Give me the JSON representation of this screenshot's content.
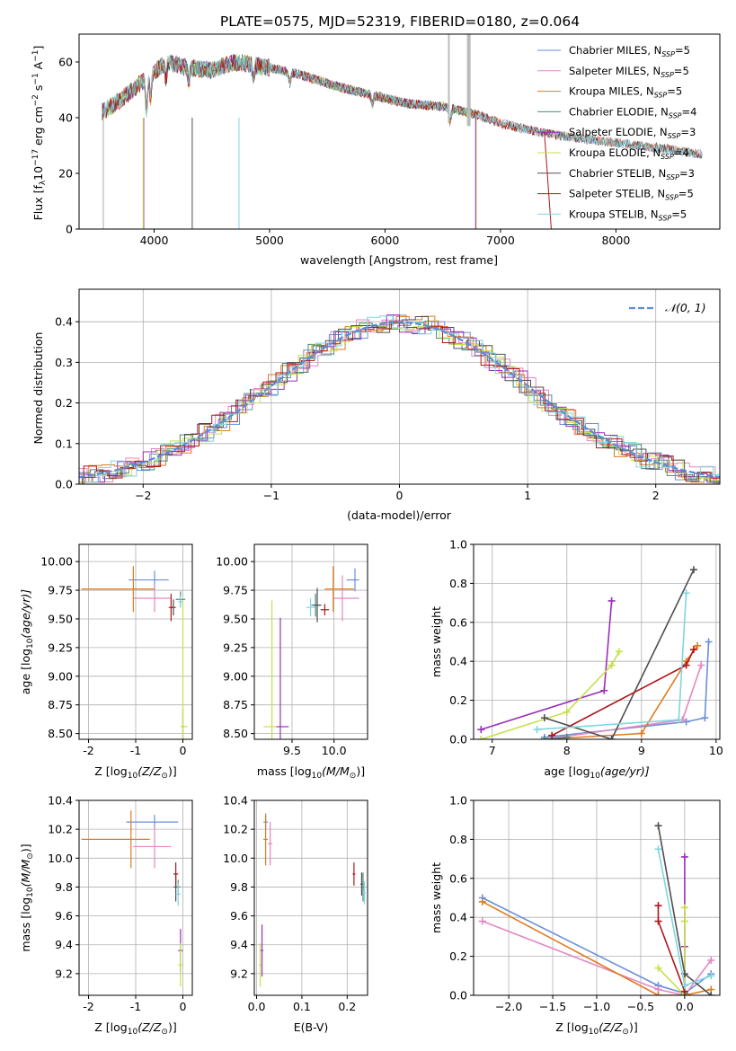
{
  "colors": {
    "Chabrier MILES": "#6a8fd8",
    "Salpeter MILES": "#e388c2",
    "Kroupa MILES": "#e07b1f",
    "Chabrier ELODIE": "#4a8a7a",
    "Salpeter ELODIE": "#9a2fb8",
    "Kroupa ELODIE": "#c5e04a",
    "Chabrier STELIB": "#505050",
    "Salpeter STELIB": "#b0161c",
    "Kroupa STELIB": "#7fd6df",
    "model_line": "#5b8bd6",
    "grid": "#b0b0b0"
  },
  "chart_data": [
    {
      "id": "spectrum",
      "type": "line",
      "title": "PLATE=0575, MJD=52319, FIBERID=0180, z=0.064",
      "xlabel": "wavelength [Angstrom, rest frame]",
      "ylabel": "Flux [f",
      "ylabel_mid": "10",
      "ylabel_sup1": "−17",
      "ylabel_mid2": " erg cm",
      "ylabel_sup2": "−2",
      "ylabel_mid3": " s",
      "ylabel_sup3": "−1",
      "ylabel_mid4": " A",
      "ylabel_sup4": "−1",
      "ylabel_end": "]",
      "xlim": [
        3350,
        8900
      ],
      "ylim": [
        0,
        70
      ],
      "xticks": [
        4000,
        5000,
        6000,
        7000,
        8000
      ],
      "yticks": [
        0,
        20,
        40,
        60
      ],
      "grid": false,
      "legend_position": "top-right",
      "continuum": {
        "x": [
          3550,
          3700,
          3900,
          4100,
          4300,
          4500,
          4700,
          5000,
          5300,
          5600,
          5900,
          6200,
          6500,
          6800,
          7000,
          7300,
          7600,
          8000,
          8400,
          8700
        ],
        "y": [
          42,
          46,
          53,
          60,
          58,
          57,
          60,
          58,
          55,
          51,
          48,
          45,
          44,
          41,
          38,
          35,
          33,
          31,
          29,
          27
        ]
      },
      "series": [
        {
          "name": "Chabrier MILES",
          "nssp": "5",
          "xmax": 8750
        },
        {
          "name": "Salpeter MILES",
          "nssp": "5",
          "xmax": 8750
        },
        {
          "name": "Kroupa MILES",
          "nssp": "5",
          "xmax": 8750
        },
        {
          "name": "Chabrier ELODIE",
          "nssp": "4",
          "xmax": 6800
        },
        {
          "name": "Salpeter ELODIE",
          "nssp": "3",
          "xmax": 6800
        },
        {
          "name": "Kroupa ELODIE",
          "nssp": "4",
          "xmax": 6800
        },
        {
          "name": "Chabrier STELIB",
          "nssp": "3",
          "xmax": 8750
        },
        {
          "name": "Salpeter STELIB",
          "nssp": "5",
          "xmax": 7450
        },
        {
          "name": "Kroupa STELIB",
          "nssp": "5",
          "xmax": 8750
        }
      ]
    },
    {
      "id": "residuals",
      "type": "line",
      "xlabel": "(data-model)/error",
      "ylabel": "Normed distribution",
      "xlim": [
        -2.5,
        2.5
      ],
      "ylim": [
        0,
        0.48
      ],
      "xticks": [
        -2,
        -1,
        0,
        1,
        2
      ],
      "yticks": [
        0.0,
        0.1,
        0.2,
        0.3,
        0.4
      ],
      "grid": true,
      "legend_position": "top-right",
      "legend_label": "𝒩(0, 1)",
      "bins": 50
    },
    {
      "id": "age_vs_Z",
      "type": "scatter",
      "xlabel": "Z [log",
      "xlabel_sub": "10",
      "xlabel_end": "(Z/Z",
      "xlabel_sun": "⊙",
      "xlabel_close": ")]",
      "ylabel": "age  [log",
      "ylabel_sub": "10",
      "ylabel_end": "(age/yr)]",
      "xlim": [
        -2.2,
        0.2
      ],
      "ylim": [
        8.45,
        10.15
      ],
      "xticks": [
        "-2",
        "-1",
        "0"
      ],
      "yticks": [
        "8.50",
        "8.75",
        "9.00",
        "9.25",
        "9.50",
        "9.75",
        "10.00"
      ],
      "grid": true,
      "points": [
        {
          "series": "Chabrier MILES",
          "x": -0.6,
          "y": 9.84,
          "xerr": [
            0.55,
            0.3
          ],
          "yerr": 0.08
        },
        {
          "series": "Salpeter MILES",
          "x": -0.6,
          "y": 9.68,
          "xerr": [
            0.45,
            0.35
          ],
          "yerr": 0.12
        },
        {
          "series": "Kroupa MILES",
          "x": -1.05,
          "y": 9.76,
          "xerr": [
            1.1,
            0.45
          ],
          "yerr": 0.2
        },
        {
          "series": "Chabrier ELODIE",
          "x": -0.05,
          "y": 9.67,
          "xerr": [
            0.1,
            0.1
          ],
          "yerr": 0.07
        },
        {
          "series": "Salpeter ELODIE",
          "x": 0.0,
          "y": 8.56,
          "xerr": [
            0.03,
            0.03
          ],
          "yerr": 0.15
        },
        {
          "series": "Kroupa ELODIE",
          "x": 0.0,
          "y": 8.56,
          "xerr": [
            0.05,
            0.1
          ],
          "yerr": 1.1
        },
        {
          "series": "Chabrier STELIB",
          "x": -0.2,
          "y": 9.6,
          "xerr": [
            0.05,
            0.05
          ],
          "yerr": 0.07
        },
        {
          "series": "Salpeter STELIB",
          "x": -0.25,
          "y": 9.6,
          "xerr": [
            0.05,
            0.05
          ],
          "yerr": 0.12
        },
        {
          "series": "Kroupa STELIB",
          "x": -0.05,
          "y": 9.65,
          "xerr": [
            0.05,
            0.05
          ],
          "yerr": 0.05
        }
      ]
    },
    {
      "id": "age_vs_mass",
      "type": "scatter",
      "xlabel": "mass [log",
      "xlabel_sub": "10",
      "xlabel_end": "(M/M",
      "xlabel_sun": "⊙",
      "xlabel_close": ")]",
      "xlim": [
        9.05,
        10.4
      ],
      "ylim": [
        8.45,
        10.15
      ],
      "xticks": [
        "9.5",
        "10.0"
      ],
      "xtick_values": [
        9.5,
        10.0
      ],
      "yticks": [
        "8.50",
        "8.75",
        "9.00",
        "9.25",
        "9.50",
        "9.75",
        "10.00"
      ],
      "grid": true,
      "points": [
        {
          "series": "Chabrier MILES",
          "x": 10.25,
          "y": 9.84,
          "xerr": [
            0.1,
            0.05
          ],
          "yerr": 0.1
        },
        {
          "series": "Salpeter MILES",
          "x": 10.1,
          "y": 9.68,
          "xerr": [
            0.1,
            0.2
          ],
          "yerr": 0.2
        },
        {
          "series": "Kroupa MILES",
          "x": 9.99,
          "y": 9.76,
          "xerr": [
            0.1,
            0.25
          ],
          "yerr": 0.2
        },
        {
          "series": "Chabrier ELODIE",
          "x": 9.78,
          "y": 9.62,
          "xerr": [
            0.05,
            0.05
          ],
          "yerr": 0.1
        },
        {
          "series": "Salpeter ELODIE",
          "x": 9.36,
          "y": 8.56,
          "xerr": [
            0.05,
            0.1
          ],
          "yerr": 0.95
        },
        {
          "series": "Kroupa ELODIE",
          "x": 9.26,
          "y": 8.56,
          "xerr": [
            0.1,
            0.05
          ],
          "yerr": 1.1
        },
        {
          "series": "Chabrier STELIB",
          "x": 9.8,
          "y": 9.62,
          "xerr": [
            0.05,
            0.05
          ],
          "yerr": 0.15
        },
        {
          "series": "Salpeter STELIB",
          "x": 9.89,
          "y": 9.58,
          "xerr": [
            0.05,
            0.05
          ],
          "yerr": 0.05
        },
        {
          "series": "Kroupa STELIB",
          "x": 9.72,
          "y": 9.6,
          "xerr": [
            0.05,
            0.05
          ],
          "yerr": 0.08
        }
      ]
    },
    {
      "id": "weight_vs_age",
      "type": "line",
      "xlabel": "age  [log",
      "xlabel_sub": "10",
      "xlabel_end": "(age/yr)]",
      "ylabel": "mass weight",
      "xlim": [
        6.75,
        10.05
      ],
      "ylim": [
        0,
        1
      ],
      "xticks": [
        "7",
        "8",
        "9",
        "10"
      ],
      "xtick_values": [
        7,
        8,
        9,
        10
      ],
      "yticks": [
        "0.0",
        "0.2",
        "0.4",
        "0.6",
        "0.8",
        "1.0"
      ],
      "grid": true,
      "series": [
        {
          "name": "Chabrier MILES",
          "x": [
            7.7,
            9.6,
            9.85,
            9.9
          ],
          "y": [
            0.01,
            0.09,
            0.11,
            0.5
          ]
        },
        {
          "name": "Salpeter MILES",
          "x": [
            7.7,
            9.55,
            9.8
          ],
          "y": [
            0.0,
            0.1,
            0.38
          ]
        },
        {
          "name": "Kroupa MILES",
          "x": [
            7.7,
            9.0,
            9.6,
            9.75
          ],
          "y": [
            0.0,
            0.03,
            0.4,
            0.48
          ]
        },
        {
          "name": "Chabrier ELODIE",
          "x": [
            7.7,
            8.0
          ],
          "y": [
            0.0,
            0.01
          ]
        },
        {
          "name": "Salpeter ELODIE",
          "x": [
            6.85,
            8.5,
            8.6
          ],
          "y": [
            0.05,
            0.25,
            0.71
          ]
        },
        {
          "name": "Kroupa ELODIE",
          "x": [
            6.85,
            8.0,
            8.6,
            8.7
          ],
          "y": [
            0.0,
            0.14,
            0.38,
            0.45
          ]
        },
        {
          "name": "Chabrier STELIB",
          "x": [
            7.7,
            8.6,
            9.7
          ],
          "y": [
            0.11,
            0.0,
            0.87
          ]
        },
        {
          "name": "Salpeter STELIB",
          "x": [
            7.8,
            9.6,
            9.7
          ],
          "y": [
            0.02,
            0.38,
            0.46
          ]
        },
        {
          "name": "Kroupa STELIB",
          "x": [
            7.6,
            9.5,
            9.6
          ],
          "y": [
            0.05,
            0.1,
            0.75
          ]
        }
      ]
    },
    {
      "id": "mass_vs_Z",
      "type": "scatter",
      "xlabel": "Z [log",
      "xlabel_sub": "10",
      "xlabel_end": "(Z/Z",
      "xlabel_sun": "⊙",
      "xlabel_close": ")]",
      "ylabel": "mass [log",
      "ylabel_sub": "10",
      "ylabel_end": "(M/M",
      "ylabel_sun": "⊙",
      "ylabel_close": ")]",
      "xlim": [
        -2.2,
        0.2
      ],
      "ylim": [
        9.05,
        10.4
      ],
      "xticks": [
        "-2",
        "-1",
        "0"
      ],
      "yticks": [
        "9.2",
        "9.4",
        "9.6",
        "9.8",
        "10.0",
        "10.2",
        "10.4"
      ],
      "grid": true,
      "points": [
        {
          "series": "Chabrier MILES",
          "x": -0.6,
          "y": 10.25,
          "xerr": [
            0.6,
            0.5
          ],
          "yerr": 0.05
        },
        {
          "series": "Salpeter MILES",
          "x": -0.6,
          "y": 10.08,
          "xerr": [
            0.45,
            0.35
          ],
          "yerr": 0.15
        },
        {
          "series": "Kroupa MILES",
          "x": -1.1,
          "y": 10.13,
          "xerr": [
            1.05,
            0.4
          ],
          "yerr": 0.2
        },
        {
          "series": "Chabrier ELODIE",
          "x": -0.1,
          "y": 9.8,
          "xerr": [
            0.05,
            0.05
          ],
          "yerr": 0.05
        },
        {
          "series": "Salpeter ELODIE",
          "x": -0.05,
          "y": 9.36,
          "xerr": [
            0.05,
            0.05
          ],
          "yerr": 0.15
        },
        {
          "series": "Kroupa ELODIE",
          "x": -0.05,
          "y": 9.26,
          "xerr": [
            0.05,
            0.05
          ],
          "yerr": 0.15
        },
        {
          "series": "Chabrier STELIB",
          "x": -0.15,
          "y": 9.8,
          "xerr": [
            0.05,
            0.05
          ],
          "yerr": 0.1
        },
        {
          "series": "Salpeter STELIB",
          "x": -0.15,
          "y": 9.89,
          "xerr": [
            0.05,
            0.05
          ],
          "yerr": 0.08
        },
        {
          "series": "Kroupa STELIB",
          "x": -0.1,
          "y": 9.75,
          "xerr": [
            0.05,
            0.05
          ],
          "yerr": 0.08
        }
      ]
    },
    {
      "id": "mass_vs_ebv",
      "type": "scatter",
      "xlabel": "E(B-V)",
      "xlim": [
        -0.005,
        0.245
      ],
      "ylim": [
        9.05,
        10.4
      ],
      "xticks": [
        "0.0",
        "0.1",
        "0.2"
      ],
      "xtick_values": [
        0.0,
        0.1,
        0.2
      ],
      "yticks": [
        "9.2",
        "9.4",
        "9.6",
        "9.8",
        "10.0",
        "10.2",
        "10.4"
      ],
      "grid": true,
      "points": [
        {
          "series": "Chabrier MILES",
          "x": 0.02,
          "y": 10.25,
          "xerr": [
            0.005,
            0.005
          ],
          "yerr": 0.05
        },
        {
          "series": "Salpeter MILES",
          "x": 0.03,
          "y": 10.1,
          "xerr": [
            0.005,
            0.005
          ],
          "yerr": 0.15
        },
        {
          "series": "Kroupa MILES",
          "x": 0.02,
          "y": 10.13,
          "xerr": [
            0.005,
            0.005
          ],
          "yerr": 0.18
        },
        {
          "series": "Chabrier ELODIE",
          "x": 0.235,
          "y": 9.8,
          "xerr": [
            0.003,
            0.003
          ],
          "yerr": 0.1
        },
        {
          "series": "Salpeter ELODIE",
          "x": 0.012,
          "y": 9.36,
          "xerr": [
            0.003,
            0.003
          ],
          "yerr": 0.18
        },
        {
          "series": "Kroupa ELODIE",
          "x": 0.008,
          "y": 9.26,
          "xerr": [
            0.003,
            0.003
          ],
          "yerr": 0.15
        },
        {
          "series": "Chabrier STELIB",
          "x": 0.232,
          "y": 9.82,
          "xerr": [
            0.003,
            0.003
          ],
          "yerr": 0.08
        },
        {
          "series": "Salpeter STELIB",
          "x": 0.215,
          "y": 9.89,
          "xerr": [
            0.003,
            0.003
          ],
          "yerr": 0.08
        },
        {
          "series": "Kroupa STELIB",
          "x": 0.238,
          "y": 9.76,
          "xerr": [
            0.003,
            0.003
          ],
          "yerr": 0.08
        }
      ]
    },
    {
      "id": "weight_vs_Z",
      "type": "line",
      "xlabel": "Z [log",
      "xlabel_sub": "10",
      "xlabel_end": "(Z/Z",
      "xlabel_sun": "⊙",
      "xlabel_close": ")]",
      "ylabel": "mass weight",
      "xlim": [
        -2.4,
        0.4
      ],
      "ylim": [
        0,
        1
      ],
      "xticks": [
        "−2.0",
        "−1.5",
        "−1.0",
        "−0.5",
        "0.0"
      ],
      "xtick_values": [
        -2.0,
        -1.5,
        -1.0,
        -0.5,
        0.0
      ],
      "yticks": [
        "0.0",
        "0.2",
        "0.4",
        "0.6",
        "0.8",
        "1.0"
      ],
      "grid": true,
      "series": [
        {
          "name": "Chabrier MILES",
          "x": [
            -2.3,
            -0.3,
            0.0,
            0.3
          ],
          "y": [
            0.5,
            0.05,
            0.01,
            0.11
          ]
        },
        {
          "name": "Salpeter MILES",
          "x": [
            -2.3,
            -0.3,
            0.0,
            0.3
          ],
          "y": [
            0.38,
            0.03,
            0.0,
            0.18
          ]
        },
        {
          "name": "Kroupa MILES",
          "x": [
            -2.3,
            -0.3,
            0.0,
            0.3
          ],
          "y": [
            0.48,
            0.0,
            0.0,
            0.03
          ]
        },
        {
          "name": "Chabrier ELODIE",
          "x": [
            0.0,
            0.0
          ],
          "y": [
            0.0,
            0.01
          ]
        },
        {
          "name": "Salpeter ELODIE",
          "x": [
            0.0,
            0.0,
            0.0
          ],
          "y": [
            0.05,
            0.25,
            0.71
          ]
        },
        {
          "name": "Kroupa ELODIE",
          "x": [
            -0.3,
            0.0,
            0.0,
            0.0
          ],
          "y": [
            0.14,
            0.0,
            0.38,
            0.45
          ]
        },
        {
          "name": "Chabrier STELIB",
          "x": [
            -0.3,
            0.0,
            0.3
          ],
          "y": [
            0.87,
            0.11,
            0.0
          ]
        },
        {
          "name": "Salpeter STELIB",
          "x": [
            -0.3,
            -0.3,
            0.0
          ],
          "y": [
            0.46,
            0.38,
            0.02
          ]
        },
        {
          "name": "Kroupa STELIB",
          "x": [
            -0.3,
            0.0,
            0.3
          ],
          "y": [
            0.75,
            0.05,
            0.1
          ]
        }
      ]
    }
  ]
}
